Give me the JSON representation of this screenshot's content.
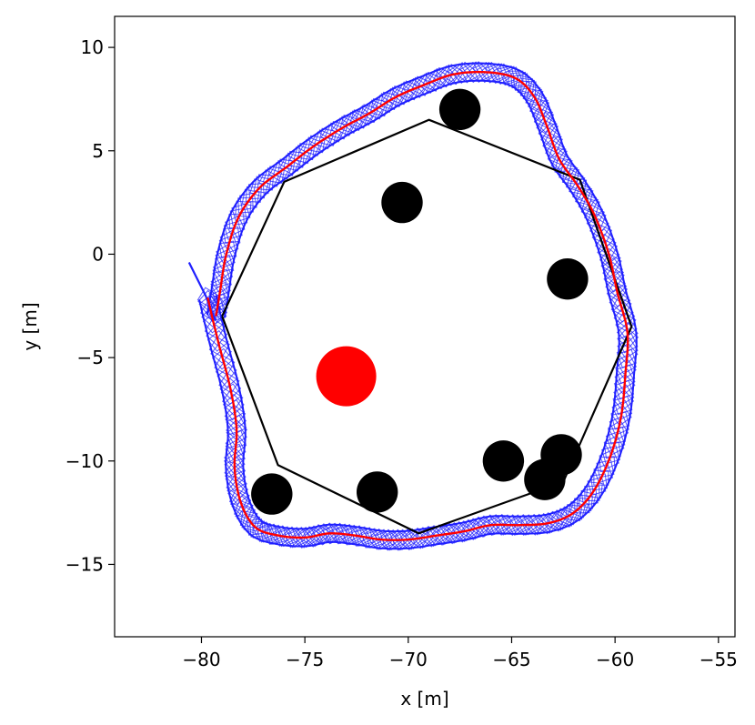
{
  "chart_data": {
    "type": "scatter",
    "xlabel": "x [m]",
    "ylabel": "y [m]",
    "xlim": [
      -84.2,
      -54.2
    ],
    "ylim": [
      -18.5,
      11.5
    ],
    "xticks": [
      -80,
      -75,
      -70,
      -65,
      -60,
      -55
    ],
    "yticks": [
      10,
      5,
      0,
      -5,
      -10,
      -15
    ],
    "xtick_labels": [
      "−80",
      "−75",
      "−70",
      "−65",
      "−60",
      "−55"
    ],
    "ytick_labels": [
      "10",
      "5",
      "0",
      "−5",
      "−10",
      "−15"
    ],
    "grid": false,
    "colors": {
      "reference_path": "#000000",
      "executed_path": "#ff0000",
      "footprints": "#1f1fff",
      "obstacles": "#000000",
      "target": "#ff0000"
    },
    "reference_path": [
      [
        -79.0,
        -3.0
      ],
      [
        -76.0,
        3.5
      ],
      [
        -69.0,
        6.5
      ],
      [
        -61.7,
        3.6
      ],
      [
        -59.2,
        -3.5
      ],
      [
        -62.5,
        -11.0
      ],
      [
        -69.5,
        -13.5
      ],
      [
        -76.3,
        -10.2
      ],
      [
        -79.0,
        -3.0
      ]
    ],
    "executed_path": [
      [
        -79.7,
        -2.1
      ],
      [
        -79.2,
        -4.2
      ],
      [
        -78.6,
        -6.5
      ],
      [
        -78.3,
        -8.5
      ],
      [
        -78.4,
        -10.3
      ],
      [
        -78.1,
        -12.0
      ],
      [
        -77.4,
        -13.2
      ],
      [
        -76.3,
        -13.6
      ],
      [
        -75.0,
        -13.7
      ],
      [
        -73.8,
        -13.5
      ],
      [
        -72.6,
        -13.6
      ],
      [
        -71.3,
        -13.8
      ],
      [
        -70.0,
        -13.8
      ],
      [
        -68.6,
        -13.6
      ],
      [
        -67.3,
        -13.4
      ],
      [
        -66.0,
        -13.1
      ],
      [
        -64.6,
        -13.1
      ],
      [
        -63.2,
        -13.0
      ],
      [
        -62.0,
        -12.5
      ],
      [
        -61.0,
        -11.4
      ],
      [
        -60.2,
        -9.7
      ],
      [
        -59.7,
        -7.8
      ],
      [
        -59.5,
        -5.8
      ],
      [
        -59.4,
        -3.8
      ],
      [
        -59.9,
        -1.8
      ],
      [
        -60.3,
        0.0
      ],
      [
        -61.0,
        1.9
      ],
      [
        -61.8,
        3.3
      ],
      [
        -62.7,
        4.6
      ],
      [
        -63.3,
        6.2
      ],
      [
        -63.9,
        7.6
      ],
      [
        -64.8,
        8.5
      ],
      [
        -66.2,
        8.8
      ],
      [
        -67.8,
        8.7
      ],
      [
        -69.2,
        8.2
      ],
      [
        -70.6,
        7.6
      ],
      [
        -71.9,
        6.8
      ],
      [
        -73.2,
        6.1
      ],
      [
        -74.6,
        5.2
      ],
      [
        -75.9,
        4.2
      ],
      [
        -77.2,
        3.2
      ],
      [
        -78.2,
        1.8
      ],
      [
        -78.8,
        0.0
      ],
      [
        -79.1,
        -1.8
      ],
      [
        -79.3,
        -3.0
      ]
    ],
    "entry_path": [
      [
        -80.6,
        -0.4
      ],
      [
        -80.2,
        -1.2
      ],
      [
        -79.8,
        -2.0
      ],
      [
        -79.5,
        -2.8
      ],
      [
        -79.3,
        -3.2
      ]
    ],
    "footprint_size_m": 0.7,
    "obstacles": [
      {
        "x": -67.5,
        "y": 7.0,
        "r": 1.0
      },
      {
        "x": -70.3,
        "y": 2.5,
        "r": 1.0
      },
      {
        "x": -62.3,
        "y": -1.2,
        "r": 1.0
      },
      {
        "x": -65.4,
        "y": -10.0,
        "r": 1.0
      },
      {
        "x": -62.6,
        "y": -9.7,
        "r": 1.0
      },
      {
        "x": -63.4,
        "y": -10.9,
        "r": 1.0
      },
      {
        "x": -71.5,
        "y": -11.5,
        "r": 1.0
      },
      {
        "x": -76.6,
        "y": -11.6,
        "r": 1.0
      }
    ],
    "target": {
      "x": -73.0,
      "y": -5.9,
      "r": 1.45
    }
  }
}
